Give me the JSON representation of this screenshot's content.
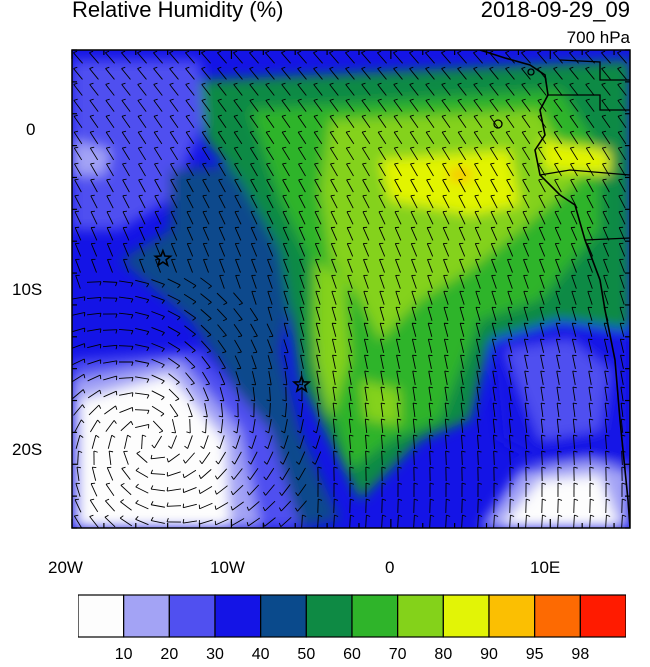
{
  "header": {
    "title": "Relative Humidity (%)",
    "datetime": "2018-09-29_09",
    "level": "700 hPa"
  },
  "axes": {
    "x_ticks": [
      "20W",
      "10W",
      "0",
      "10E"
    ],
    "y_ticks": [
      "0",
      "10S",
      "20S"
    ],
    "lon_range": [
      -20,
      15
    ],
    "lat_range": [
      -25,
      5
    ]
  },
  "colorbar": {
    "labels": [
      "10",
      "20",
      "30",
      "40",
      "50",
      "60",
      "70",
      "80",
      "90",
      "95",
      "98"
    ],
    "colors": [
      "#fdfdfd",
      "#a3a3f5",
      "#5050f0",
      "#1414e6",
      "#0a4a8c",
      "#0e8a44",
      "#2fb42a",
      "#84d21a",
      "#e2f406",
      "#fbbf02",
      "#fd6a02",
      "#ff1b00"
    ]
  },
  "markers": [
    {
      "name": "star-marker-1",
      "lon": -14.3,
      "lat": -8.1
    },
    {
      "name": "star-marker-2",
      "lon": -5.6,
      "lat": -16.0
    }
  ]
}
